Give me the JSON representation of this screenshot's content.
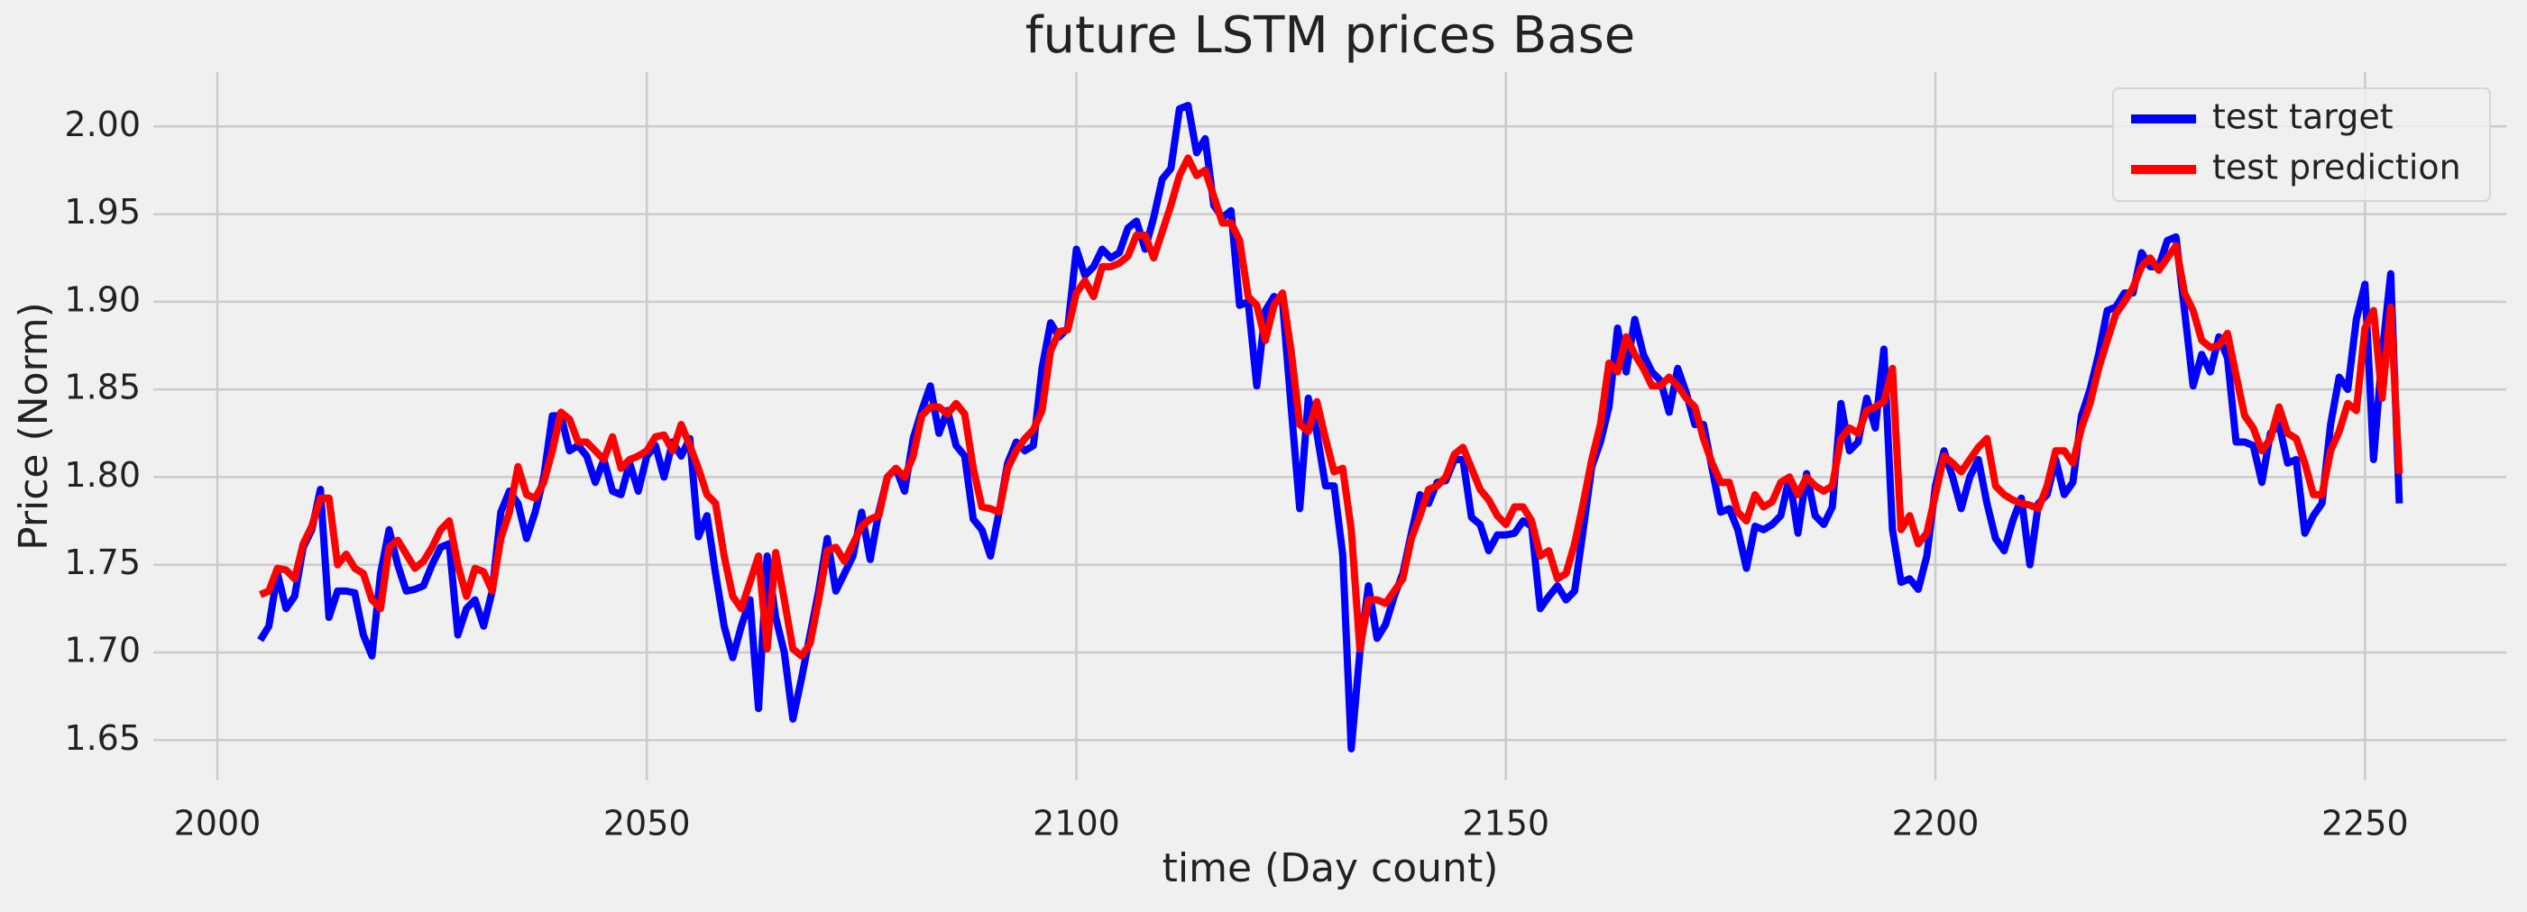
{
  "chart_data": {
    "type": "line",
    "title": "future LSTM prices Base",
    "xlabel": "time (Day count)",
    "ylabel": "Price (Norm)",
    "x": [
      2005,
      2006,
      2007,
      2008,
      2009,
      2010,
      2011,
      2012,
      2013,
      2014,
      2015,
      2016,
      2017,
      2018,
      2019,
      2020,
      2021,
      2022,
      2023,
      2024,
      2025,
      2026,
      2027,
      2028,
      2029,
      2030,
      2031,
      2032,
      2033,
      2034,
      2035,
      2036,
      2037,
      2038,
      2039,
      2040,
      2041,
      2042,
      2043,
      2044,
      2045,
      2046,
      2047,
      2048,
      2049,
      2050,
      2051,
      2052,
      2053,
      2054,
      2055,
      2056,
      2057,
      2058,
      2059,
      2060,
      2061,
      2062,
      2063,
      2064,
      2065,
      2066,
      2067,
      2068,
      2069,
      2070,
      2071,
      2072,
      2073,
      2074,
      2075,
      2076,
      2077,
      2078,
      2079,
      2080,
      2081,
      2082,
      2083,
      2084,
      2085,
      2086,
      2087,
      2088,
      2089,
      2090,
      2091,
      2092,
      2093,
      2094,
      2095,
      2096,
      2097,
      2098,
      2099,
      2100,
      2101,
      2102,
      2103,
      2104,
      2105,
      2106,
      2107,
      2108,
      2109,
      2110,
      2111,
      2112,
      2113,
      2114,
      2115,
      2116,
      2117,
      2118,
      2119,
      2120,
      2121,
      2122,
      2123,
      2124,
      2125,
      2126,
      2127,
      2128,
      2129,
      2130,
      2131,
      2132,
      2133,
      2134,
      2135,
      2136,
      2137,
      2138,
      2139,
      2140,
      2141,
      2142,
      2143,
      2144,
      2145,
      2146,
      2147,
      2148,
      2149,
      2150,
      2151,
      2152,
      2153,
      2154,
      2155,
      2156,
      2157,
      2158,
      2159,
      2160,
      2161,
      2162,
      2163,
      2164,
      2165,
      2166,
      2167,
      2168,
      2169,
      2170,
      2171,
      2172,
      2173,
      2174,
      2175,
      2176,
      2177,
      2178,
      2179,
      2180,
      2181,
      2182,
      2183,
      2184,
      2185,
      2186,
      2187,
      2188,
      2189,
      2190,
      2191,
      2192,
      2193,
      2194,
      2195,
      2196,
      2197,
      2198,
      2199,
      2200,
      2201,
      2202,
      2203,
      2204,
      2205,
      2206,
      2207,
      2208,
      2209,
      2210,
      2211,
      2212,
      2213,
      2214,
      2215,
      2216,
      2217,
      2218,
      2219,
      2220,
      2221,
      2222,
      2223,
      2224,
      2225,
      2226,
      2227,
      2228,
      2229,
      2230,
      2231,
      2232,
      2233,
      2234,
      2235,
      2236,
      2237,
      2238,
      2239,
      2240,
      2241,
      2242,
      2243,
      2244,
      2245,
      2246,
      2247,
      2248,
      2249,
      2250,
      2251,
      2252,
      2253,
      2254
    ],
    "series": [
      {
        "name": "test target",
        "color": "#0000ff",
        "values": [
          1.707,
          1.715,
          1.745,
          1.725,
          1.732,
          1.76,
          1.77,
          1.793,
          1.72,
          1.735,
          1.735,
          1.734,
          1.71,
          1.698,
          1.745,
          1.77,
          1.75,
          1.735,
          1.736,
          1.738,
          1.75,
          1.76,
          1.762,
          1.71,
          1.725,
          1.73,
          1.715,
          1.735,
          1.78,
          1.792,
          1.785,
          1.765,
          1.78,
          1.8,
          1.835,
          1.835,
          1.815,
          1.818,
          1.812,
          1.797,
          1.81,
          1.792,
          1.79,
          1.808,
          1.792,
          1.812,
          1.818,
          1.8,
          1.82,
          1.812,
          1.822,
          1.766,
          1.778,
          1.745,
          1.715,
          1.697,
          1.715,
          1.73,
          1.668,
          1.755,
          1.72,
          1.7,
          1.662,
          1.685,
          1.71,
          1.735,
          1.765,
          1.735,
          1.745,
          1.755,
          1.78,
          1.753,
          1.78,
          1.8,
          1.805,
          1.792,
          1.822,
          1.838,
          1.852,
          1.825,
          1.838,
          1.818,
          1.812,
          1.776,
          1.77,
          1.755,
          1.78,
          1.808,
          1.82,
          1.815,
          1.818,
          1.862,
          1.888,
          1.88,
          1.885,
          1.93,
          1.915,
          1.92,
          1.93,
          1.925,
          1.928,
          1.942,
          1.946,
          1.93,
          1.948,
          1.97,
          1.976,
          2.01,
          2.012,
          1.985,
          1.993,
          1.955,
          1.948,
          1.952,
          1.898,
          1.9,
          1.852,
          1.895,
          1.903,
          1.9,
          1.84,
          1.782,
          1.845,
          1.825,
          1.795,
          1.795,
          1.756,
          1.645,
          1.7,
          1.738,
          1.708,
          1.716,
          1.732,
          1.745,
          1.768,
          1.79,
          1.785,
          1.797,
          1.798,
          1.81,
          1.81,
          1.777,
          1.773,
          1.758,
          1.767,
          1.767,
          1.768,
          1.775,
          1.772,
          1.725,
          1.732,
          1.738,
          1.73,
          1.735,
          1.77,
          1.806,
          1.82,
          1.84,
          1.885,
          1.86,
          1.89,
          1.87,
          1.86,
          1.855,
          1.837,
          1.862,
          1.848,
          1.83,
          1.83,
          1.805,
          1.78,
          1.782,
          1.77,
          1.748,
          1.772,
          1.77,
          1.773,
          1.778,
          1.8,
          1.768,
          1.802,
          1.778,
          1.773,
          1.783,
          1.842,
          1.815,
          1.82,
          1.845,
          1.828,
          1.873,
          1.77,
          1.74,
          1.742,
          1.736,
          1.755,
          1.795,
          1.815,
          1.8,
          1.782,
          1.8,
          1.81,
          1.785,
          1.765,
          1.758,
          1.775,
          1.788,
          1.75,
          1.785,
          1.79,
          1.81,
          1.79,
          1.797,
          1.835,
          1.85,
          1.87,
          1.895,
          1.897,
          1.905,
          1.905,
          1.928,
          1.92,
          1.92,
          1.935,
          1.937,
          1.895,
          1.852,
          1.87,
          1.86,
          1.88,
          1.868,
          1.82,
          1.82,
          1.818,
          1.797,
          1.825,
          1.83,
          1.808,
          1.81,
          1.768,
          1.778,
          1.785,
          1.83,
          1.857,
          1.85,
          1.89,
          1.91,
          1.81,
          1.87,
          1.916,
          1.785
        ]
      },
      {
        "name": "test prediction",
        "color": "#ff0000",
        "values": [
          1.733,
          1.735,
          1.748,
          1.747,
          1.742,
          1.762,
          1.772,
          1.788,
          1.788,
          1.75,
          1.756,
          1.748,
          1.745,
          1.73,
          1.725,
          1.76,
          1.764,
          1.756,
          1.748,
          1.752,
          1.76,
          1.77,
          1.775,
          1.75,
          1.732,
          1.748,
          1.746,
          1.735,
          1.765,
          1.78,
          1.806,
          1.79,
          1.788,
          1.797,
          1.815,
          1.837,
          1.833,
          1.82,
          1.82,
          1.815,
          1.81,
          1.823,
          1.805,
          1.81,
          1.812,
          1.815,
          1.823,
          1.824,
          1.815,
          1.83,
          1.818,
          1.805,
          1.79,
          1.785,
          1.755,
          1.732,
          1.725,
          1.74,
          1.755,
          1.702,
          1.757,
          1.73,
          1.702,
          1.698,
          1.705,
          1.73,
          1.758,
          1.76,
          1.752,
          1.762,
          1.772,
          1.776,
          1.778,
          1.8,
          1.805,
          1.8,
          1.812,
          1.835,
          1.84,
          1.84,
          1.836,
          1.842,
          1.836,
          1.805,
          1.783,
          1.782,
          1.78,
          1.805,
          1.815,
          1.822,
          1.827,
          1.838,
          1.872,
          1.883,
          1.884,
          1.905,
          1.912,
          1.903,
          1.92,
          1.92,
          1.922,
          1.926,
          1.938,
          1.938,
          1.925,
          1.94,
          1.955,
          1.972,
          1.982,
          1.972,
          1.975,
          1.96,
          1.945,
          1.945,
          1.935,
          1.903,
          1.898,
          1.878,
          1.898,
          1.905,
          1.872,
          1.83,
          1.826,
          1.843,
          1.822,
          1.803,
          1.805,
          1.77,
          1.702,
          1.73,
          1.73,
          1.728,
          1.735,
          1.742,
          1.765,
          1.778,
          1.793,
          1.795,
          1.8,
          1.813,
          1.817,
          1.805,
          1.793,
          1.787,
          1.778,
          1.773,
          1.783,
          1.783,
          1.775,
          1.755,
          1.758,
          1.742,
          1.745,
          1.762,
          1.785,
          1.81,
          1.83,
          1.865,
          1.86,
          1.88,
          1.87,
          1.862,
          1.852,
          1.852,
          1.857,
          1.852,
          1.845,
          1.84,
          1.822,
          1.808,
          1.797,
          1.797,
          1.78,
          1.775,
          1.79,
          1.783,
          1.786,
          1.797,
          1.8,
          1.79,
          1.8,
          1.795,
          1.792,
          1.795,
          1.822,
          1.828,
          1.825,
          1.838,
          1.84,
          1.843,
          1.862,
          1.77,
          1.778,
          1.762,
          1.768,
          1.79,
          1.812,
          1.808,
          1.803,
          1.81,
          1.817,
          1.822,
          1.795,
          1.79,
          1.787,
          1.785,
          1.784,
          1.782,
          1.795,
          1.815,
          1.815,
          1.808,
          1.828,
          1.842,
          1.862,
          1.878,
          1.893,
          1.9,
          1.908,
          1.92,
          1.925,
          1.918,
          1.925,
          1.932,
          1.905,
          1.895,
          1.878,
          1.874,
          1.875,
          1.882,
          1.858,
          1.835,
          1.828,
          1.815,
          1.822,
          1.84,
          1.825,
          1.822,
          1.808,
          1.79,
          1.79,
          1.815,
          1.826,
          1.842,
          1.838,
          1.885,
          1.895,
          1.845,
          1.897,
          1.802
        ]
      }
    ],
    "xlim": [
      1992.55,
      2266.45
    ],
    "xticks": [
      2000,
      2050,
      2100,
      2150,
      2200,
      2250
    ],
    "ylim": [
      1.627,
      2.031
    ],
    "yticks": [
      1.65,
      {
        "value": 1.7,
        "label": "1.70"
      },
      1.75,
      {
        "value": 1.8,
        "label": "1.80"
      },
      1.85,
      {
        "value": 1.9,
        "label": "1.90"
      },
      1.95,
      {
        "value": 2.0,
        "label": "2.00"
      }
    ],
    "grid": true,
    "legend": "upper right"
  }
}
